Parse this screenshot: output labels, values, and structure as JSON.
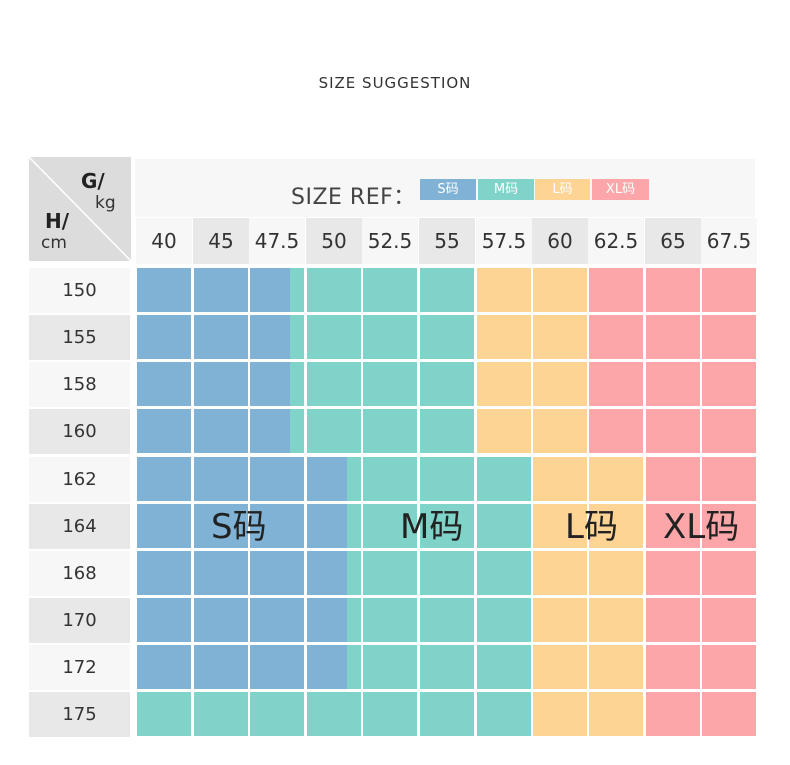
{
  "title": "SIZE SUGGESTION",
  "corner": {
    "weight_label": "G/",
    "weight_unit": "kg",
    "height_label": "H/",
    "height_unit": "cm"
  },
  "legend": {
    "label": "SIZE REF：",
    "items": [
      {
        "name": "S码",
        "color": "#7fb2d4"
      },
      {
        "name": "M码",
        "color": "#80d3c8"
      },
      {
        "name": "L码",
        "color": "#fdd494"
      },
      {
        "name": "XL码",
        "color": "#fda6aa"
      }
    ]
  },
  "weights": [
    "40",
    "45",
    "47.5",
    "50",
    "52.5",
    "55",
    "57.5",
    "60",
    "62.5",
    "65",
    "67.5"
  ],
  "heights": [
    "150",
    "155",
    "158",
    "160",
    "162",
    "164",
    "168",
    "170",
    "172",
    "175"
  ],
  "row_sizes": [
    [
      "S",
      "S",
      "S/M",
      "M",
      "M",
      "M",
      "L",
      "L",
      "XL",
      "XL",
      "XL"
    ],
    [
      "S",
      "S",
      "S/M",
      "M",
      "M",
      "M",
      "L",
      "L",
      "XL",
      "XL",
      "XL"
    ],
    [
      "S",
      "S",
      "S/M",
      "M",
      "M",
      "M",
      "L",
      "L",
      "XL",
      "XL",
      "XL"
    ],
    [
      "S",
      "S",
      "S/M",
      "M",
      "M",
      "M",
      "L",
      "L",
      "XL",
      "XL",
      "XL"
    ],
    [
      "S",
      "S",
      "S",
      "S/M",
      "M",
      "M",
      "M",
      "L",
      "L",
      "XL",
      "XL"
    ],
    [
      "S",
      "S",
      "S",
      "S/M",
      "M",
      "M",
      "M",
      "L",
      "L",
      "XL",
      "XL"
    ],
    [
      "S",
      "S",
      "S",
      "S/M",
      "M",
      "M",
      "M",
      "L",
      "L",
      "XL",
      "XL"
    ],
    [
      "S",
      "S",
      "S",
      "S/M",
      "M",
      "M",
      "M",
      "L",
      "L",
      "XL",
      "XL"
    ],
    [
      "S",
      "S",
      "S",
      "S/M",
      "M",
      "M",
      "M",
      "L",
      "L",
      "XL",
      "XL"
    ],
    [
      "M",
      "M",
      "M",
      "M",
      "M",
      "M",
      "M",
      "L",
      "L",
      "XL",
      "XL"
    ]
  ],
  "size_labels": [
    "S码",
    "M码",
    "L码",
    "XL码"
  ]
}
